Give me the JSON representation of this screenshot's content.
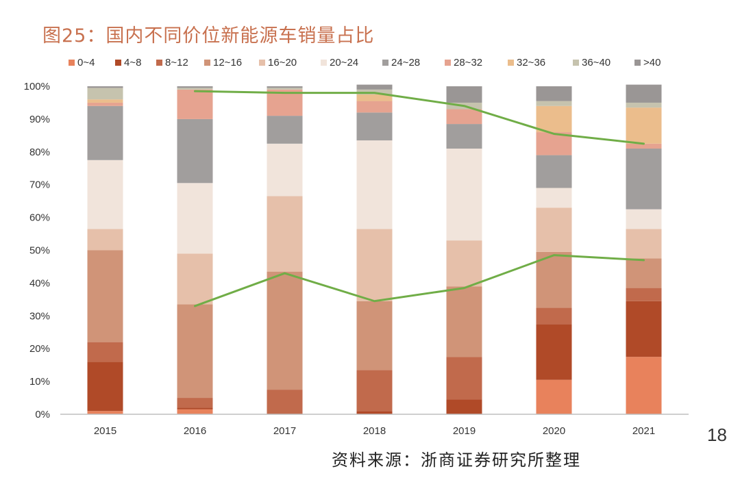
{
  "title": "图25：国内不同价位新能源车销量占比",
  "source": "资料来源：浙商证券研究所整理",
  "page_number": "18",
  "chart_data": {
    "type": "bar",
    "stacked": true,
    "categories": [
      "2015",
      "2016",
      "2017",
      "2018",
      "2019",
      "2020",
      "2021"
    ],
    "ylim": [
      0,
      100
    ],
    "yticks": [
      "0%",
      "10%",
      "20%",
      "30%",
      "40%",
      "50%",
      "60%",
      "70%",
      "80%",
      "90%",
      "100%"
    ],
    "legend_position": "top",
    "grid": false,
    "series": [
      {
        "name": "0~4",
        "color": "#e8825c",
        "values": [
          1,
          1.5,
          0,
          0,
          0,
          10.5,
          17.5
        ]
      },
      {
        "name": "4~8",
        "color": "#b04a28",
        "values": [
          15,
          0.5,
          0,
          1,
          4.5,
          17,
          17
        ]
      },
      {
        "name": "8~12",
        "color": "#c16a4c",
        "values": [
          6,
          3,
          7.5,
          12.5,
          13,
          5,
          4
        ]
      },
      {
        "name": "12~16",
        "color": "#d09478",
        "values": [
          28,
          28.5,
          36,
          21,
          21.5,
          17,
          9
        ]
      },
      {
        "name": "16~20",
        "color": "#e6c0aa",
        "values": [
          6.5,
          15.5,
          23,
          22,
          14,
          13.5,
          9
        ]
      },
      {
        "name": "20~24",
        "color": "#f1e4db",
        "values": [
          21,
          21.5,
          16,
          27,
          28,
          6,
          6
        ]
      },
      {
        "name": "24~28",
        "color": "#a19e9d",
        "values": [
          16.5,
          19.5,
          8.5,
          8.5,
          7.5,
          10,
          18.5
        ]
      },
      {
        "name": "28~32",
        "color": "#e6a390",
        "values": [
          1,
          9,
          8,
          3.5,
          4.5,
          7,
          1.5
        ]
      },
      {
        "name": "32~36",
        "color": "#ebbd8c",
        "values": [
          1,
          0,
          0,
          2,
          0,
          8,
          11
        ]
      },
      {
        "name": "36~40",
        "color": "#c6c3ae",
        "values": [
          3.5,
          0.5,
          0.5,
          1.5,
          2,
          1.5,
          1.5
        ]
      },
      {
        "name": ">40",
        "color": "#9a9695",
        "values": [
          0.5,
          0.5,
          0.5,
          1.5,
          5,
          4.5,
          5.5
        ]
      }
    ],
    "lines": [
      {
        "color": "#70ad47",
        "values": [
          null,
          98.5,
          98,
          98,
          94,
          85.5,
          82.5
        ]
      },
      {
        "color": "#70ad47",
        "values": [
          null,
          33,
          43,
          34.5,
          38.5,
          48.5,
          47
        ]
      }
    ]
  }
}
